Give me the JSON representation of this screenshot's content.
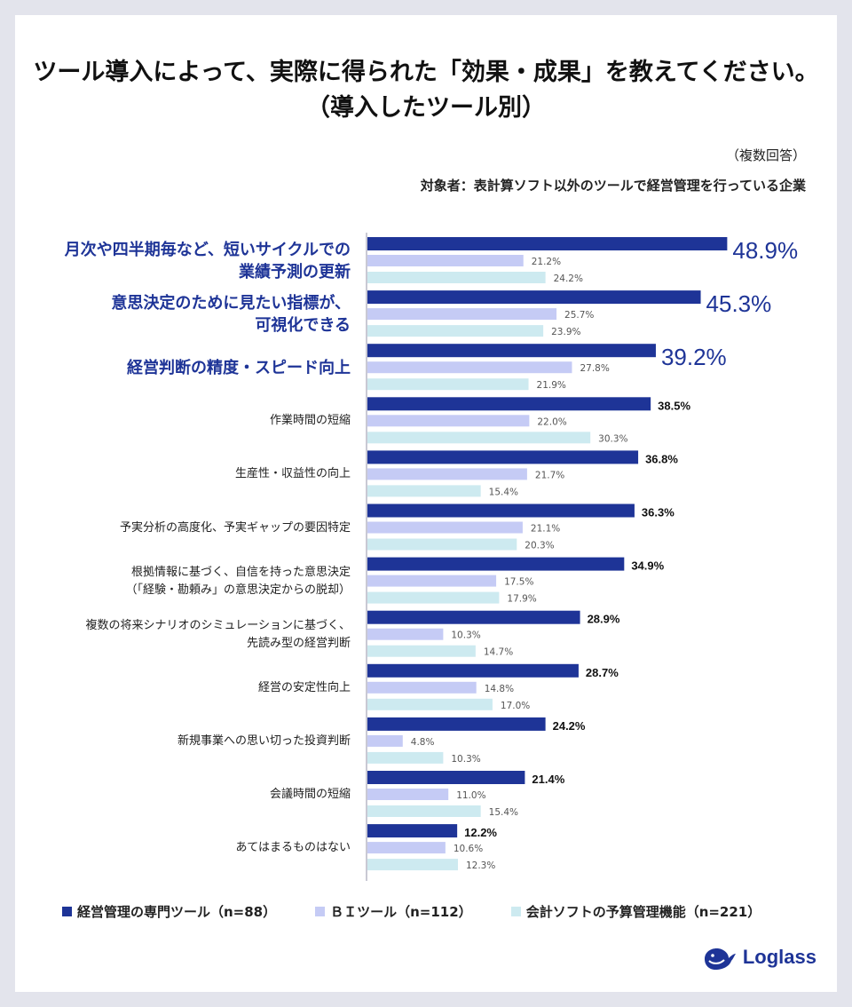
{
  "title_line1": "ツール導入によって、実際に得られた「効果・成果」を教えてください。",
  "title_line2": "（導入したツール別）",
  "note_multi": "（複数回答）",
  "note_target": "対象者：表計算ソフト以外のツールで経営管理を行っている企業",
  "colors": {
    "series1": "#1e3497",
    "series2": "#c5cbf5",
    "series3": "#cdeaf0",
    "highlight": "#1e3497"
  },
  "chart_data": {
    "type": "bar",
    "orientation": "horizontal",
    "title": "ツール導入によって、実際に得られた「効果・成果」を教えてください。（導入したツール別）",
    "value_unit": "%",
    "categories": [
      "月次や四半期毎など、短いサイクルでの\n業績予測の更新",
      "意思決定のために見たい指標が、\n可視化できる",
      "経営判断の精度・スピード向上",
      "作業時間の短縮",
      "生産性・収益性の向上",
      "予実分析の高度化、予実ギャップの要因特定",
      "根拠情報に基づく、自信を持った意思決定\n（「経験・勘頼み」の意思決定からの脱却）",
      "複数の将来シナリオのシミュレーションに基づく、\n先読み型の経営判断",
      "経営の安定性向上",
      "新規事業への思い切った投資判断",
      "会議時間の短縮",
      "あてはまるものはない"
    ],
    "highlighted_categories": [
      0,
      1,
      2
    ],
    "series": [
      {
        "name": "経営管理の専門ツール（n=88）",
        "values": [
          48.9,
          45.3,
          39.2,
          38.5,
          36.8,
          36.3,
          34.9,
          28.9,
          28.7,
          24.2,
          21.4,
          12.2
        ]
      },
      {
        "name": "ＢＩツール（n=112）",
        "values": [
          21.2,
          25.7,
          27.8,
          22.0,
          21.7,
          21.1,
          17.5,
          10.3,
          14.8,
          4.8,
          11.0,
          10.6
        ]
      },
      {
        "name": "会計ソフトの予算管理機能（n=221）",
        "values": [
          24.2,
          23.9,
          21.9,
          30.3,
          15.4,
          20.3,
          17.9,
          14.7,
          17.0,
          10.3,
          15.4,
          12.3
        ]
      }
    ],
    "xlim": [
      0,
      60
    ]
  },
  "legend": [
    {
      "label": "経営管理の専門ツール（n=88）"
    },
    {
      "label": "ＢＩツール（n=112）"
    },
    {
      "label": "会計ソフトの予算管理機能（n=221）"
    }
  ],
  "logo_text": "Loglass"
}
